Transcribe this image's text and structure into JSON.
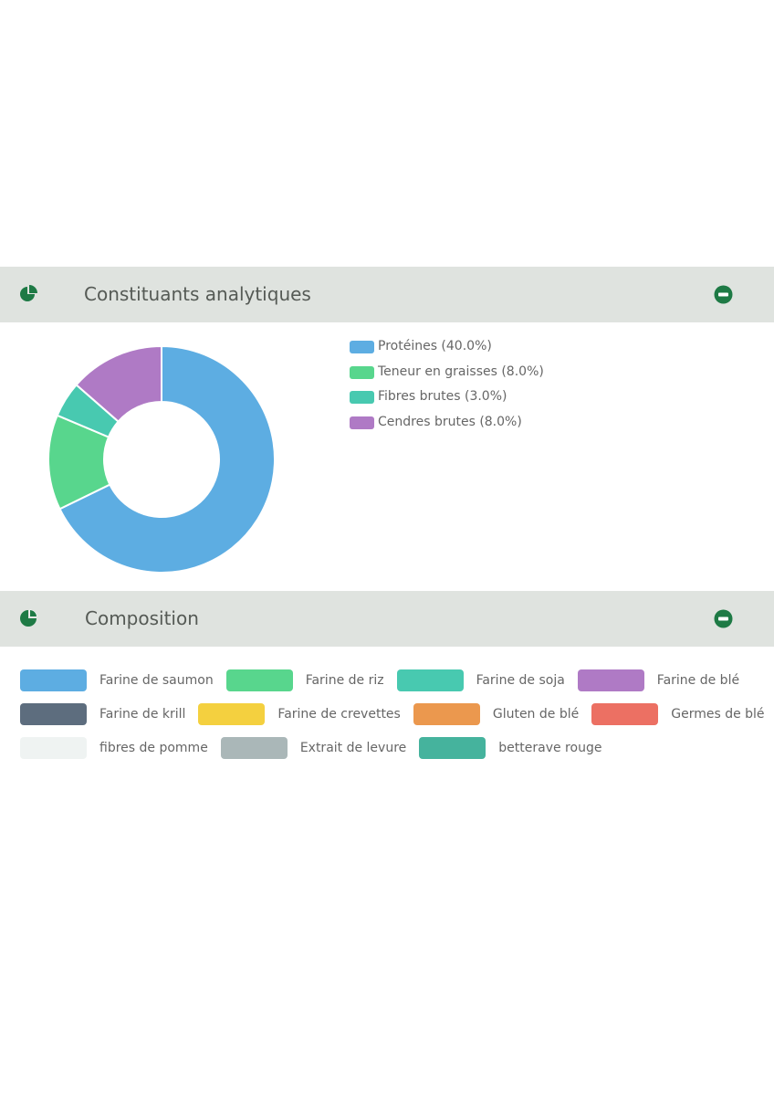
{
  "sections": {
    "analytic_title": "Constituants analytiques",
    "composition_title": "Composition"
  },
  "icons": {
    "section": "pie-chart-icon",
    "collapse": "minus-circle-icon",
    "accent": "#1e7a45"
  },
  "chart_data": [
    {
      "type": "pie",
      "variant": "donut",
      "legend_position": "right",
      "labels": [
        "Protéines (40.0%)",
        "Teneur en graisses (8.0%)",
        "Fibres brutes (3.0%)",
        "Cendres brutes (8.0%)"
      ],
      "categories": [
        "Protéines",
        "Teneur en graisses",
        "Fibres brutes",
        "Cendres brutes"
      ],
      "values": [
        40.0,
        8.0,
        3.0,
        8.0
      ],
      "colors": [
        "#5dade2",
        "#58d68d",
        "#48c9b0",
        "#af7ac5"
      ]
    },
    {
      "type": "pie",
      "legend_only": true,
      "categories": [
        "Farine de saumon",
        "Farine de riz",
        "Farine de soja",
        "Farine de blé",
        "Farine de krill",
        "Farine de crevettes",
        "Gluten de blé",
        "Germes de blé",
        "fibres de pomme",
        "Extrait de levure",
        "betterave rouge"
      ],
      "colors": [
        "#5dade2",
        "#58d68d",
        "#48c9b0",
        "#af7ac5",
        "#5d6d7e",
        "#f4d03f",
        "#eb984e",
        "#ec7063",
        "#eff3f2",
        "#aab7b8",
        "#45b39d"
      ]
    }
  ]
}
